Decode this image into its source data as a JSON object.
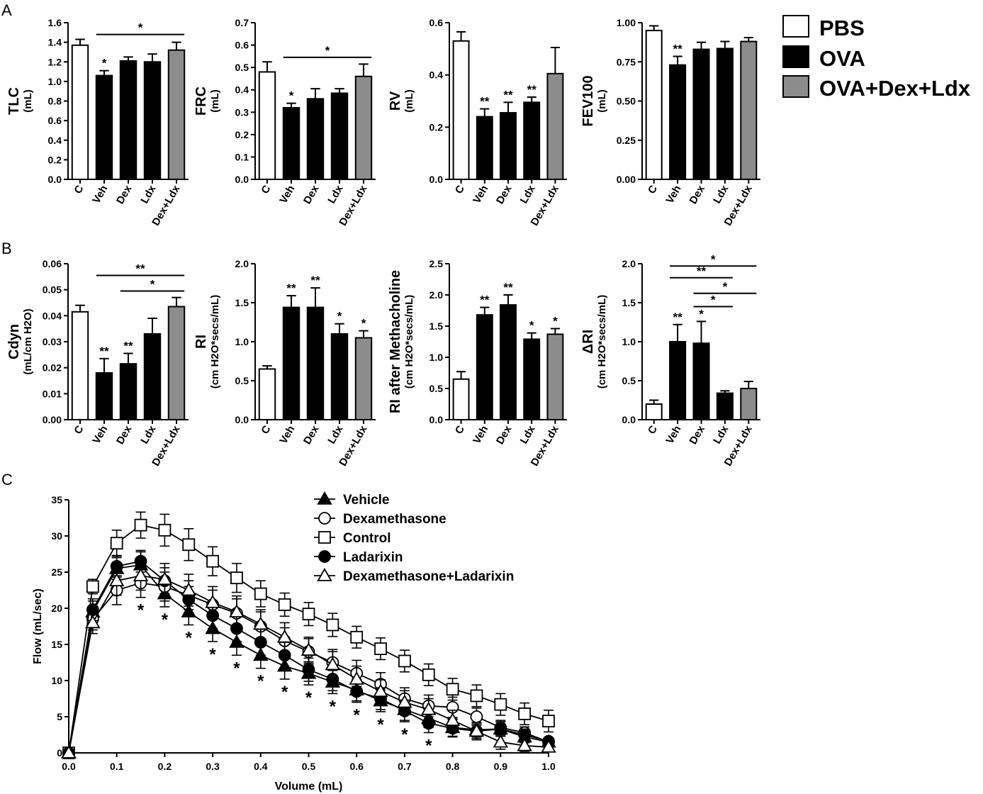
{
  "panel_labels": [
    "A",
    "B",
    "C"
  ],
  "legend": {
    "entries": [
      {
        "label": "PBS",
        "fill": "#ffffff"
      },
      {
        "label": "OVA",
        "fill": "#000000"
      },
      {
        "label": "OVA+Dex+Ldx",
        "fill": "#8c8c8c"
      }
    ]
  },
  "chart_data": [
    {
      "id": "tlc",
      "type": "bar",
      "panel": "A",
      "ylabel": "TLC",
      "yunit": "(mL)",
      "categories": [
        "C",
        "Veh",
        "Dex",
        "Ldx",
        "Dex+Ldx"
      ],
      "groups": [
        "PBS",
        "OVA",
        "OVA",
        "OVA",
        "OVA+Dex+Ldx"
      ],
      "values": [
        1.37,
        1.06,
        1.21,
        1.2,
        1.32
      ],
      "errors": [
        0.06,
        0.05,
        0.04,
        0.08,
        0.08
      ],
      "ylim": [
        0,
        1.6
      ],
      "yticks": [
        "0.0",
        "0.2",
        "0.4",
        "0.6",
        "0.8",
        "1.0",
        "1.2",
        "1.4",
        "1.6"
      ],
      "stars": [
        "",
        "*",
        "",
        "",
        ""
      ],
      "brackets": [
        {
          "from": 1,
          "to": 4,
          "label": "*",
          "y": 1.48
        }
      ]
    },
    {
      "id": "frc",
      "type": "bar",
      "panel": "A",
      "ylabel": "FRC",
      "yunit": "(mL)",
      "categories": [
        "C",
        "Veh",
        "Dex",
        "Ldx",
        "Dex+Ldx"
      ],
      "groups": [
        "PBS",
        "OVA",
        "OVA",
        "OVA",
        "OVA+Dex+Ldx"
      ],
      "values": [
        0.48,
        0.32,
        0.36,
        0.385,
        0.46
      ],
      "errors": [
        0.045,
        0.02,
        0.045,
        0.02,
        0.055
      ],
      "ylim": [
        0,
        0.7
      ],
      "yticks": [
        "0.0",
        "0.1",
        "0.2",
        "0.3",
        "0.4",
        "0.5",
        "0.6",
        "0.7"
      ],
      "stars": [
        "",
        "*",
        "",
        "",
        ""
      ],
      "brackets": [
        {
          "from": 1,
          "to": 4,
          "label": "*",
          "y": 0.545
        }
      ]
    },
    {
      "id": "rv",
      "type": "bar",
      "panel": "A",
      "ylabel": "RV",
      "yunit": "(mL)",
      "categories": [
        "C",
        "Veh",
        "Dex",
        "Ldx",
        "Dex+Ldx"
      ],
      "groups": [
        "PBS",
        "OVA",
        "OVA",
        "OVA",
        "OVA+Dex+Ldx"
      ],
      "values": [
        0.53,
        0.24,
        0.255,
        0.295,
        0.405
      ],
      "errors": [
        0.035,
        0.03,
        0.04,
        0.02,
        0.1
      ],
      "ylim": [
        0,
        0.6
      ],
      "yticks": [
        "0.0",
        "0.2",
        "0.4",
        "0.6"
      ],
      "stars": [
        "",
        "**",
        "**",
        "**",
        ""
      ],
      "brackets": []
    },
    {
      "id": "fev100",
      "type": "bar",
      "panel": "A",
      "ylabel": "FEV100",
      "yunit": "(mL)",
      "categories": [
        "C",
        "Veh",
        "Dex",
        "Ldx",
        "Dex+Ldx"
      ],
      "groups": [
        "PBS",
        "OVA",
        "OVA",
        "OVA",
        "OVA+Dex+Ldx"
      ],
      "values": [
        0.95,
        0.73,
        0.83,
        0.835,
        0.88
      ],
      "errors": [
        0.03,
        0.055,
        0.045,
        0.045,
        0.025
      ],
      "ylim": [
        0,
        1.0
      ],
      "yticks": [
        "0.00",
        "0.25",
        "0.50",
        "0.75",
        "1.00"
      ],
      "stars": [
        "",
        "**",
        "",
        "",
        ""
      ],
      "brackets": []
    },
    {
      "id": "cdyn",
      "type": "bar",
      "panel": "B",
      "ylabel": "Cdyn",
      "yunit": "(mL/cm H2O)",
      "categories": [
        "C",
        "Veh",
        "Dex",
        "Ldx",
        "Dex+Ldx"
      ],
      "groups": [
        "PBS",
        "OVA",
        "OVA",
        "OVA",
        "OVA+Dex+Ldx"
      ],
      "values": [
        0.0415,
        0.018,
        0.0215,
        0.033,
        0.0435
      ],
      "errors": [
        0.0025,
        0.0055,
        0.004,
        0.006,
        0.0035
      ],
      "ylim": [
        0,
        0.06
      ],
      "yticks": [
        "0.00",
        "0.01",
        "0.02",
        "0.03",
        "0.04",
        "0.05",
        "0.06"
      ],
      "stars": [
        "",
        "**",
        "**",
        "",
        ""
      ],
      "brackets": [
        {
          "from": 1,
          "to": 4,
          "label": "**",
          "y": 0.0555
        },
        {
          "from": 2,
          "to": 4,
          "label": "*",
          "y": 0.0495
        }
      ]
    },
    {
      "id": "ri",
      "type": "bar",
      "panel": "B",
      "ylabel": "RI",
      "yunit": "(cm H2O*secs/mL)",
      "categories": [
        "C",
        "Veh",
        "Dex",
        "Ldx",
        "Dex+Ldx"
      ],
      "groups": [
        "PBS",
        "OVA",
        "OVA",
        "OVA",
        "OVA+Dex+Ldx"
      ],
      "values": [
        0.65,
        1.44,
        1.44,
        1.1,
        1.05
      ],
      "errors": [
        0.04,
        0.15,
        0.25,
        0.13,
        0.09
      ],
      "ylim": [
        0,
        2.0
      ],
      "yticks": [
        "0.0",
        "0.5",
        "1.0",
        "1.5",
        "2.0"
      ],
      "stars": [
        "",
        "**",
        "**",
        "*",
        "*"
      ],
      "brackets": []
    },
    {
      "id": "ri_mch",
      "type": "bar",
      "panel": "B",
      "ylabel": "RI after Methacholine",
      "yunit": "(cm H2O*secs/mL)",
      "categories": [
        "C",
        "Veh",
        "Dex",
        "Ldx",
        "Dex+Ldx"
      ],
      "groups": [
        "PBS",
        "OVA",
        "OVA",
        "OVA",
        "OVA+Dex+Ldx"
      ],
      "values": [
        0.65,
        1.68,
        1.84,
        1.29,
        1.37
      ],
      "errors": [
        0.12,
        0.12,
        0.16,
        0.1,
        0.09
      ],
      "ylim": [
        0,
        2.5
      ],
      "yticks": [
        "0.0",
        "0.5",
        "1.0",
        "1.5",
        "2.0",
        "2.5"
      ],
      "stars": [
        "",
        "**",
        "**",
        "*",
        "*"
      ],
      "brackets": []
    },
    {
      "id": "delta_ri",
      "type": "bar",
      "panel": "B",
      "ylabel": "ΔRI",
      "yunit": "(cm H2O*secs/mL)",
      "categories": [
        "C",
        "Veh",
        "Dex",
        "Ldx",
        "Dex+Ldx"
      ],
      "groups": [
        "PBS",
        "OVA",
        "OVA",
        "OVA",
        "OVA+Dex+Ldx"
      ],
      "values": [
        0.2,
        1.0,
        0.98,
        0.34,
        0.4
      ],
      "errors": [
        0.05,
        0.22,
        0.28,
        0.03,
        0.09
      ],
      "ylim": [
        0,
        2.0
      ],
      "yticks": [
        "0.0",
        "0.5",
        "1.0",
        "1.5",
        "2.0"
      ],
      "stars": [
        "",
        "**",
        "*",
        "",
        ""
      ],
      "brackets": [
        {
          "from": 1,
          "to": 4,
          "label": "*",
          "y": 1.97
        },
        {
          "from": 1,
          "to": 3,
          "label": "**",
          "y": 1.82
        },
        {
          "from": 2,
          "to": 4,
          "label": "*",
          "y": 1.62
        },
        {
          "from": 2,
          "to": 3,
          "label": "*",
          "y": 1.45
        }
      ]
    },
    {
      "id": "flow_volume",
      "type": "line",
      "panel": "C",
      "xlabel": "Volume (mL)",
      "ylabel": "Flow (mL/sec)",
      "xlim": [
        0,
        1.0
      ],
      "ylim": [
        0,
        35
      ],
      "xticks": [
        "0.0",
        "0.1",
        "0.2",
        "0.3",
        "0.4",
        "0.5",
        "0.6",
        "0.7",
        "0.8",
        "0.9",
        "1.0"
      ],
      "yticks": [
        "0",
        "5",
        "10",
        "15",
        "20",
        "25",
        "30",
        "35"
      ],
      "x": [
        0,
        0.05,
        0.1,
        0.15,
        0.2,
        0.25,
        0.3,
        0.35,
        0.4,
        0.45,
        0.5,
        0.55,
        0.6,
        0.65,
        0.7,
        0.75,
        0.8,
        0.85,
        0.9,
        0.95,
        1.0
      ],
      "series": [
        {
          "name": "Vehicle",
          "marker": "triangle",
          "filled": true,
          "values": [
            0,
            19.5,
            25.5,
            26.0,
            22.0,
            19.5,
            17.2,
            15.3,
            13.5,
            12.0,
            11.0,
            9.8,
            8.7,
            7.2,
            6.0,
            4.8,
            3.5,
            3.2,
            3.3,
            2.2,
            1.5
          ],
          "errors": [
            0,
            1.5,
            1.5,
            1.8,
            1.8,
            1.8,
            1.8,
            1.8,
            1.8,
            1.8,
            1.6,
            1.6,
            1.5,
            1.5,
            1.5,
            1.3,
            1.2,
            1.0,
            1.0,
            0.8,
            0.5
          ]
        },
        {
          "name": "Dexamethasone",
          "marker": "circle",
          "filled": false,
          "values": [
            0,
            18.5,
            22.5,
            23.5,
            23.0,
            21.8,
            20.5,
            19.3,
            17.5,
            15.5,
            14.0,
            12.5,
            11.0,
            9.5,
            7.5,
            6.5,
            6.3,
            5.0,
            3.5,
            2.8,
            1.5
          ],
          "errors": [
            0,
            1.5,
            2.0,
            2.0,
            2.0,
            2.0,
            2.0,
            2.0,
            2.0,
            1.8,
            1.8,
            1.8,
            1.8,
            1.6,
            1.5,
            1.5,
            1.4,
            1.2,
            1.0,
            0.8,
            0.5
          ]
        },
        {
          "name": "Control",
          "marker": "square",
          "filled": false,
          "values": [
            0,
            23.0,
            29.0,
            31.5,
            30.8,
            28.8,
            26.5,
            24.2,
            22.0,
            20.5,
            19.2,
            17.7,
            16.0,
            14.4,
            12.7,
            10.8,
            8.8,
            7.9,
            6.7,
            5.4,
            4.4
          ],
          "errors": [
            0,
            1.0,
            1.8,
            1.8,
            2.2,
            2.2,
            2.0,
            2.0,
            1.8,
            1.6,
            1.6,
            1.6,
            1.5,
            1.5,
            1.5,
            1.5,
            1.5,
            1.5,
            1.5,
            1.5,
            1.5
          ]
        },
        {
          "name": "Ladarixin",
          "marker": "circle",
          "filled": true,
          "values": [
            0,
            19.8,
            25.8,
            26.5,
            23.8,
            21.2,
            19.0,
            17.2,
            15.3,
            13.5,
            11.5,
            10.2,
            8.5,
            7.5,
            5.8,
            4.1,
            3.4,
            3.0,
            3.3,
            2.5,
            1.6
          ],
          "errors": [
            0,
            1.5,
            1.5,
            1.5,
            1.8,
            1.8,
            1.8,
            1.8,
            1.8,
            1.8,
            1.6,
            1.6,
            1.5,
            1.5,
            1.5,
            1.3,
            1.2,
            1.0,
            1.0,
            0.8,
            0.5
          ]
        },
        {
          "name": "Dexamethasone+Ladarixin",
          "marker": "triangle",
          "filled": false,
          "values": [
            0,
            18.0,
            23.8,
            24.5,
            24.0,
            22.5,
            20.8,
            19.5,
            17.8,
            16.0,
            14.2,
            12.2,
            10.2,
            8.5,
            7.0,
            6.0,
            4.5,
            3.0,
            1.5,
            1.0,
            0.8
          ],
          "errors": [
            0,
            1.5,
            2.0,
            2.0,
            2.2,
            2.2,
            2.2,
            2.2,
            2.0,
            2.0,
            1.8,
            1.8,
            1.8,
            1.6,
            1.6,
            1.5,
            1.4,
            1.2,
            1.0,
            0.8,
            0.5
          ]
        }
      ],
      "stars": [
        {
          "x": 0.15,
          "label": "*"
        },
        {
          "x": 0.2,
          "label": "*"
        },
        {
          "x": 0.25,
          "label": "*"
        },
        {
          "x": 0.3,
          "label": "*"
        },
        {
          "x": 0.35,
          "label": "*"
        },
        {
          "x": 0.4,
          "label": "*"
        },
        {
          "x": 0.45,
          "label": "*"
        },
        {
          "x": 0.5,
          "label": "*"
        },
        {
          "x": 0.55,
          "label": "*"
        },
        {
          "x": 0.6,
          "label": "*"
        },
        {
          "x": 0.65,
          "label": "*"
        },
        {
          "x": 0.7,
          "label": "*"
        },
        {
          "x": 0.75,
          "label": "*"
        }
      ]
    }
  ]
}
